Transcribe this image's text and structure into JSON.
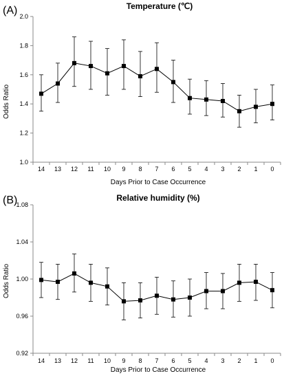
{
  "chart_data": [
    {
      "type": "line",
      "panel_label": "(A)",
      "title": "Temperature (℃)",
      "xlabel": "Days Prior to Case Occurrence",
      "ylabel": "Odds Ratio",
      "categories": [
        "14",
        "13",
        "12",
        "11",
        "10",
        "9",
        "8",
        "7",
        "6",
        "5",
        "4",
        "3",
        "2",
        "1",
        "0"
      ],
      "ylim": [
        1.0,
        2.0
      ],
      "yticks": [
        "1.0",
        "1.2",
        "1.4",
        "1.6",
        "1.8",
        "2.0"
      ],
      "error_bars": true,
      "series": [
        {
          "values": [
            1.47,
            1.54,
            1.68,
            1.66,
            1.61,
            1.66,
            1.59,
            1.64,
            1.55,
            1.44,
            1.43,
            1.42,
            1.35,
            1.38,
            1.4
          ],
          "lower": [
            1.35,
            1.41,
            1.52,
            1.5,
            1.46,
            1.5,
            1.45,
            1.48,
            1.41,
            1.33,
            1.32,
            1.31,
            1.24,
            1.27,
            1.29
          ],
          "upper": [
            1.6,
            1.68,
            1.86,
            1.83,
            1.78,
            1.84,
            1.76,
            1.82,
            1.7,
            1.57,
            1.56,
            1.54,
            1.46,
            1.5,
            1.53
          ]
        }
      ]
    },
    {
      "type": "line",
      "panel_label": "(B)",
      "title": "Relative humidity (%)",
      "xlabel": "Days Prior to Case Occurrence",
      "ylabel": "Odds Ratio",
      "categories": [
        "14",
        "13",
        "12",
        "11",
        "10",
        "9",
        "8",
        "7",
        "6",
        "5",
        "4",
        "3",
        "2",
        "1",
        "0"
      ],
      "ylim": [
        0.92,
        1.08
      ],
      "yticks": [
        "0.92",
        "0.96",
        "1.00",
        "1.04",
        "1.08"
      ],
      "error_bars": true,
      "series": [
        {
          "values": [
            0.999,
            0.997,
            1.006,
            0.996,
            0.992,
            0.976,
            0.977,
            0.982,
            0.978,
            0.98,
            0.987,
            0.987,
            0.996,
            0.997,
            0.988
          ],
          "lower": [
            0.98,
            0.978,
            0.986,
            0.976,
            0.972,
            0.956,
            0.958,
            0.962,
            0.959,
            0.96,
            0.968,
            0.968,
            0.976,
            0.977,
            0.969
          ],
          "upper": [
            1.018,
            1.016,
            1.027,
            1.016,
            1.012,
            0.996,
            0.996,
            1.002,
            0.998,
            1.0,
            1.007,
            1.006,
            1.016,
            1.016,
            1.007
          ]
        }
      ]
    }
  ]
}
